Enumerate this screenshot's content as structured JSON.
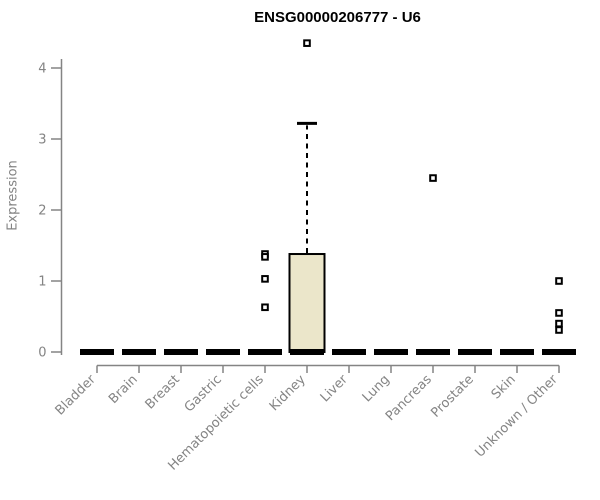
{
  "title": "ENSG00000206777 - U6",
  "chart_data": {
    "type": "boxplot",
    "title": "ENSG00000206777 - U6",
    "xlabel": "",
    "ylabel": "Expression",
    "ylim": [
      0,
      4
    ],
    "yticks": [
      0,
      1,
      2,
      3,
      4
    ],
    "grid": false,
    "legend": "none",
    "categories": [
      "Bladder",
      "Brain",
      "Breast",
      "Gastric",
      "Hematopoietic cells",
      "Kidney",
      "Liver",
      "Lung",
      "Pancreas",
      "Prostate",
      "Skin",
      "Unknown / Other"
    ],
    "series": [
      {
        "category": "Bladder",
        "low": 0,
        "q1": 0,
        "median": 0,
        "q3": 0,
        "high": 0,
        "outliers": []
      },
      {
        "category": "Brain",
        "low": 0,
        "q1": 0,
        "median": 0,
        "q3": 0,
        "high": 0,
        "outliers": []
      },
      {
        "category": "Breast",
        "low": 0,
        "q1": 0,
        "median": 0,
        "q3": 0,
        "high": 0,
        "outliers": []
      },
      {
        "category": "Gastric",
        "low": 0,
        "q1": 0,
        "median": 0,
        "q3": 0,
        "high": 0,
        "outliers": []
      },
      {
        "category": "Hematopoietic cells",
        "low": 0,
        "q1": 0,
        "median": 0,
        "q3": 0,
        "high": 0,
        "outliers": [
          1.38,
          1.34,
          1.03,
          0.63
        ]
      },
      {
        "category": "Kidney",
        "low": 0,
        "q1": 0,
        "median": 0,
        "q3": 1.38,
        "high": 3.22,
        "outliers": [
          4.35
        ]
      },
      {
        "category": "Liver",
        "low": 0,
        "q1": 0,
        "median": 0,
        "q3": 0,
        "high": 0,
        "outliers": []
      },
      {
        "category": "Lung",
        "low": 0,
        "q1": 0,
        "median": 0,
        "q3": 0,
        "high": 0,
        "outliers": []
      },
      {
        "category": "Pancreas",
        "low": 0,
        "q1": 0,
        "median": 0,
        "q3": 0,
        "high": 0,
        "outliers": [
          2.45
        ]
      },
      {
        "category": "Prostate",
        "low": 0,
        "q1": 0,
        "median": 0,
        "q3": 0,
        "high": 0,
        "outliers": []
      },
      {
        "category": "Skin",
        "low": 0,
        "q1": 0,
        "median": 0,
        "q3": 0,
        "high": 0,
        "outliers": []
      },
      {
        "category": "Unknown / Other",
        "low": 0,
        "q1": 0,
        "median": 0,
        "q3": 0,
        "high": 0,
        "outliers": [
          1.0,
          0.55,
          0.4,
          0.31
        ]
      }
    ],
    "colors": {
      "box_fill": "#ebe6ca",
      "box_stroke": "#000000",
      "median": "#000000",
      "whisker": "#000000",
      "outlier_stroke": "#000000",
      "axis": "#848484",
      "tick_label": "#848484",
      "title": "#000000",
      "background": "#ffffff"
    }
  }
}
